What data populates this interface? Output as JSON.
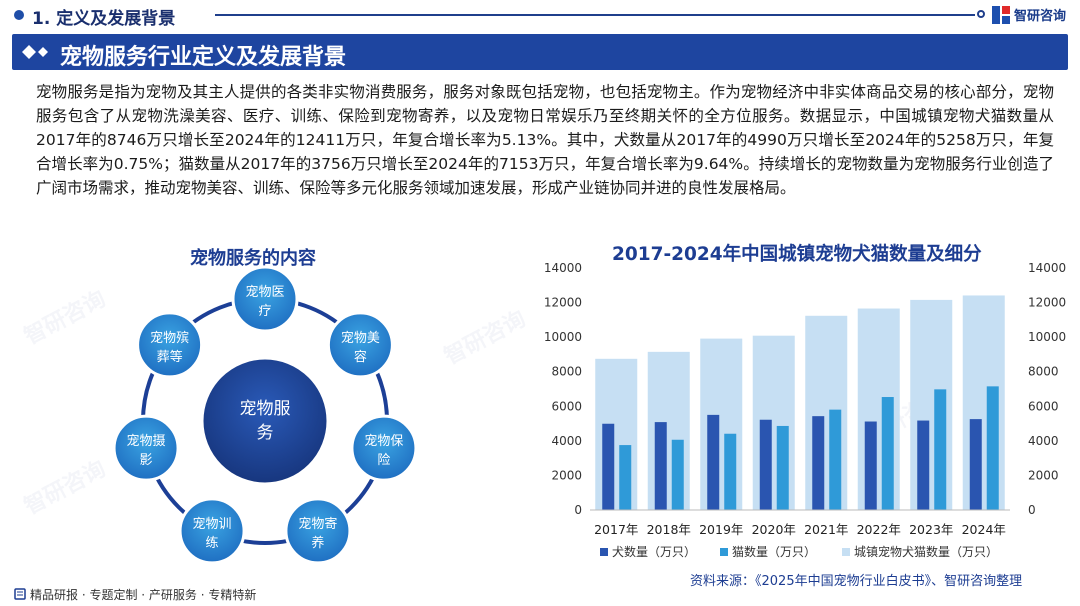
{
  "header": {
    "section_title": "1. 定义及发展背景",
    "brand_name": "智研咨询"
  },
  "banner": {
    "title": "宠物服务行业定义及发展背景"
  },
  "intro": {
    "text": "宠物服务是指为宠物及其主人提供的各类非实物消费服务，服务对象既包括宠物，也包括宠物主。作为宠物经济中非实体商品交易的核心部分，宠物服务包含了从宠物洗澡美容、医疗、训练、保险到宠物寄养，以及宠物日常娱乐乃至终期关怀的全方位服务。数据显示，中国城镇宠物犬猫数量从2017年的8746万只增长至2024年的12411万只，年复合增长率为5.13%。其中，犬数量从2017年的4990万只增长至2024年的5258万只，年复合增长率为0.75%；猫数量从2017年的3756万只增长至2024年的7153万只，年复合增长率为9.64%。持续增长的宠物数量为宠物服务行业创造了广阔市场需求，推动宠物美容、训练、保险等多元化服务领域加速发展，形成产业链协同并进的良性发展格局。"
  },
  "diagram": {
    "title": "宠物服务的内容",
    "center": "宠物服务",
    "nodes": [
      "宠物医疗",
      "宠物美容",
      "宠物保险",
      "宠物寄养",
      "宠物训练",
      "宠物摄影",
      "宠物殡葬等"
    ]
  },
  "chart_data": {
    "type": "bar",
    "title": "2017-2024年中国城镇宠物犬猫数量及细分",
    "categories": [
      "2017年",
      "2018年",
      "2019年",
      "2020年",
      "2021年",
      "2022年",
      "2023年",
      "2024年"
    ],
    "series": [
      {
        "name": "犬数量（万只）",
        "values": [
          4990,
          5085,
          5503,
          5222,
          5429,
          5119,
          5175,
          5258
        ],
        "color": "#2a55b0",
        "axis": "left"
      },
      {
        "name": "猫数量（万只）",
        "values": [
          3756,
          4064,
          4412,
          4862,
          5806,
          6536,
          6980,
          7153
        ],
        "color": "#2f9ad8",
        "axis": "left"
      },
      {
        "name": "城镇宠物犬猫数量（万只）",
        "values": [
          8746,
          9149,
          9915,
          10084,
          11235,
          11655,
          12155,
          12411
        ],
        "color": "#c6dff3",
        "axis": "right"
      }
    ],
    "ylim": [
      0,
      14000
    ],
    "yticks": [
      0,
      2000,
      4000,
      6000,
      8000,
      10000,
      12000,
      14000
    ],
    "y2lim": [
      0,
      14000
    ],
    "legend_position": "bottom",
    "grid": false
  },
  "source": {
    "text": "资料来源：《2025年中国宠物行业白皮书》、智研咨询整理"
  },
  "footer": {
    "links": "精品研报 · 专题定制 · 产研服务 · 专精特新"
  },
  "watermark": "智研咨询"
}
